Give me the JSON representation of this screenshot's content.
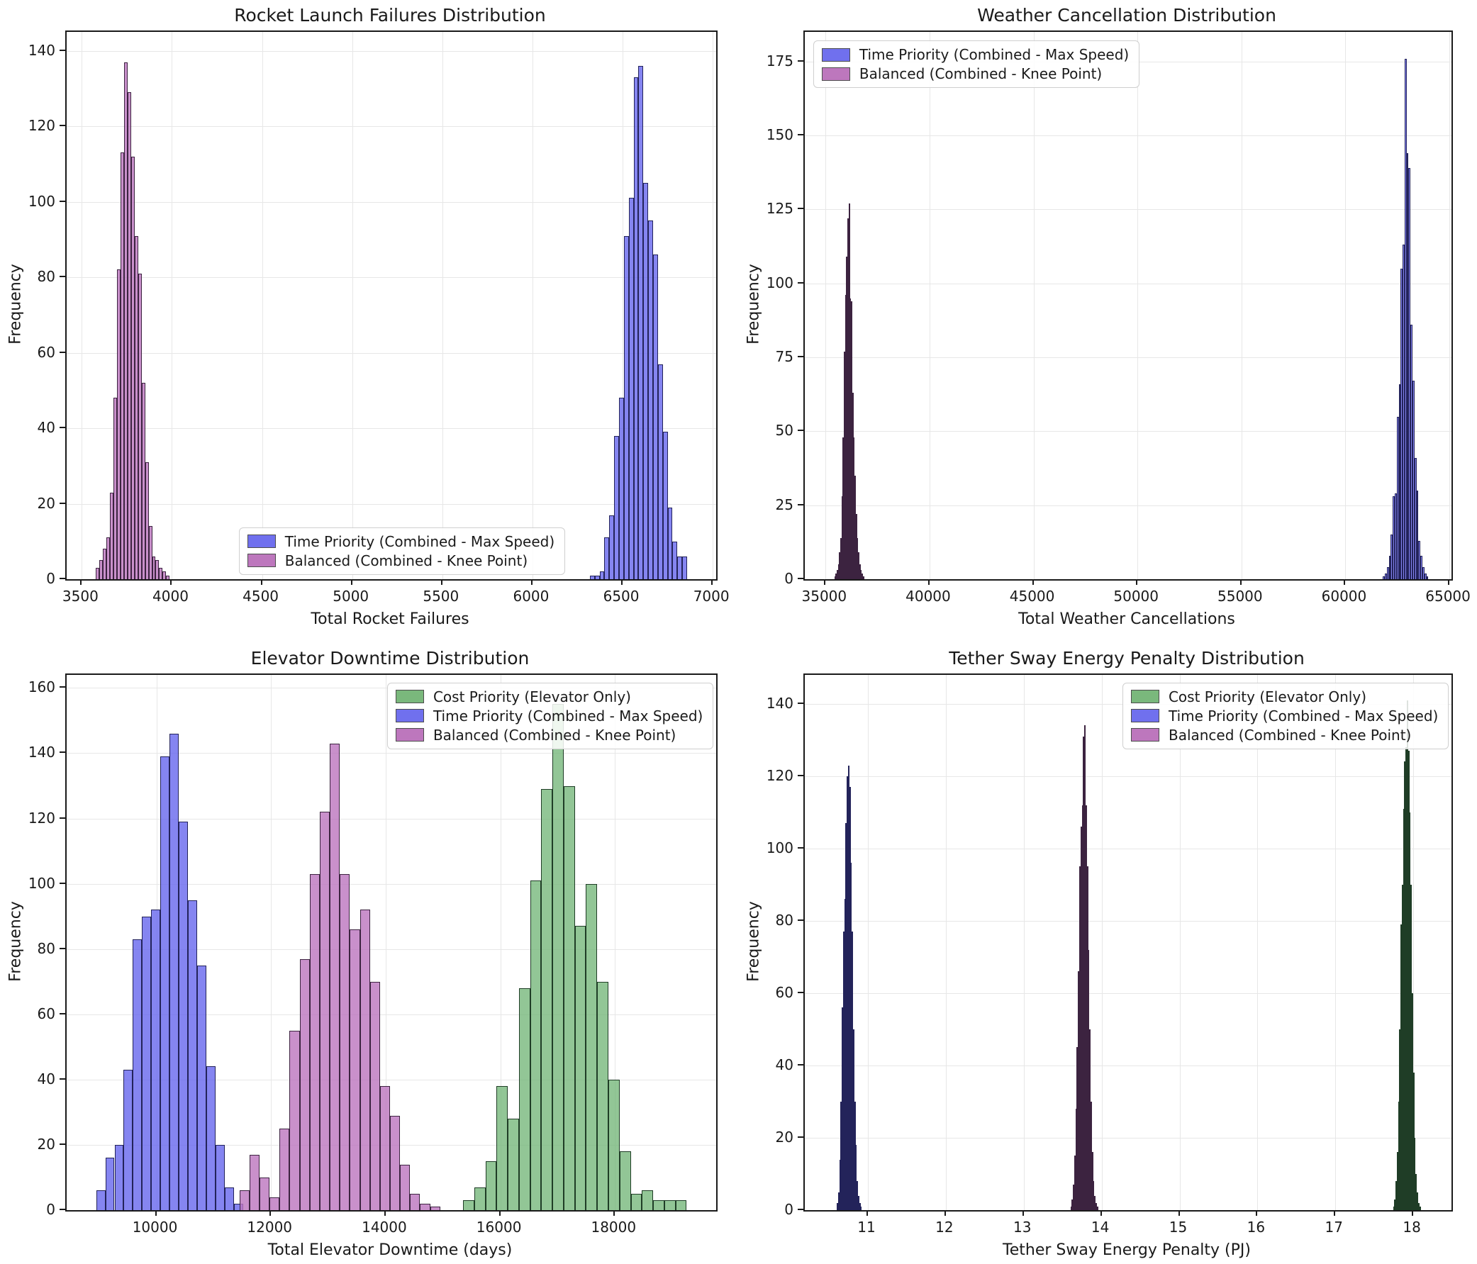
{
  "figure": {
    "background": "#ffffff",
    "grid_color": "#e7e7e7",
    "spine_color": "#1a1a1a",
    "colors": {
      "time_priority_blue": "#7070ee",
      "balanced_purple": "#bd77bd",
      "cost_priority_green": "#7ab87c"
    }
  },
  "chart_data": [
    {
      "type": "histogram",
      "title": "Rocket Launch Failures Distribution",
      "xlabel": "Total Rocket Failures",
      "ylabel": "Frequency",
      "xlim": [
        3416,
        7019
      ],
      "ylim": [
        0,
        145
      ],
      "xticks": [
        3500,
        4000,
        4500,
        5000,
        5500,
        6000,
        6500,
        7000
      ],
      "yticks": [
        0,
        20,
        40,
        60,
        80,
        100,
        120,
        140
      ],
      "grid": true,
      "legend": {
        "position": "bottom-left",
        "items": [
          {
            "label": "Time Priority (Combined - Max Speed)",
            "color": "#7070ee"
          },
          {
            "label": "Balanced (Combined - Knee Point)",
            "color": "#bd77bd"
          }
        ]
      },
      "series": [
        {
          "name": "Time Priority (Combined - Max Speed)",
          "fill": "rgba(102,102,238,0.8)",
          "edge": "#23235a",
          "bin_start": 6318,
          "bin_width": 27,
          "values": [
            1,
            1,
            2,
            11,
            17,
            38,
            48,
            91,
            101,
            133,
            136,
            105,
            95,
            86,
            57,
            39,
            19,
            10,
            6,
            6
          ]
        },
        {
          "name": "Balanced (Combined - Knee Point)",
          "fill": "rgba(188,116,190,0.8)",
          "edge": "#3c2340",
          "bin_start": 3578,
          "bin_width": 19.5,
          "values": [
            3,
            5,
            8,
            11,
            23,
            48,
            82,
            113,
            137,
            129,
            112,
            91,
            81,
            52,
            31,
            14,
            6,
            5,
            3,
            2,
            1
          ]
        }
      ]
    },
    {
      "type": "histogram",
      "title": "Weather Cancellation Distribution",
      "xlabel": "Total Weather Cancellations",
      "ylabel": "Frequency",
      "xlim": [
        34000,
        65100
      ],
      "ylim": [
        0,
        185
      ],
      "xticks": [
        35000,
        40000,
        45000,
        50000,
        55000,
        60000,
        65000
      ],
      "yticks": [
        0,
        25,
        50,
        75,
        100,
        125,
        150,
        175
      ],
      "grid": true,
      "legend": {
        "position": "top-left",
        "items": [
          {
            "label": "Time Priority (Combined - Max Speed)",
            "color": "#7070ee"
          },
          {
            "label": "Balanced (Combined - Knee Point)",
            "color": "#bd77bd"
          }
        ]
      },
      "series": [
        {
          "name": "Time Priority (Combined - Max Speed)",
          "fill": "rgba(102,102,238,0.8)",
          "edge": "#23235a",
          "bin_start": 61800,
          "bin_width": 95,
          "values": [
            1,
            2,
            4,
            8,
            15,
            28,
            29,
            55,
            66,
            105,
            113,
            176,
            144,
            139,
            86,
            67,
            41,
            30,
            13,
            8,
            4,
            2,
            1
          ]
        },
        {
          "name": "Balanced (Combined - Knee Point)",
          "fill": "rgba(188,116,190,0.8)",
          "edge": "#3c2340",
          "bin_start": 35420,
          "bin_width": 57,
          "values": [
            1,
            2,
            3,
            5,
            9,
            14,
            28,
            48,
            77,
            96,
            109,
            122,
            127,
            95,
            94,
            63,
            48,
            35,
            22,
            14,
            9,
            5,
            3,
            2,
            1
          ]
        }
      ]
    },
    {
      "type": "histogram",
      "title": "Elevator Downtime Distribution",
      "xlabel": "Total Elevator Downtime (days)",
      "ylabel": "Frequency",
      "xlim": [
        8435,
        19765
      ],
      "ylim": [
        0,
        164
      ],
      "xticks": [
        10000,
        12000,
        14000,
        16000,
        18000
      ],
      "yticks": [
        0,
        20,
        40,
        60,
        80,
        100,
        120,
        140,
        160
      ],
      "grid": true,
      "legend": {
        "position": "top-right",
        "items": [
          {
            "label": "Cost Priority (Elevator Only)",
            "color": "#7ab87c"
          },
          {
            "label": "Time Priority (Combined - Max Speed)",
            "color": "#7070ee"
          },
          {
            "label": "Balanced (Combined - Knee Point)",
            "color": "#bd77bd"
          }
        ]
      },
      "series": [
        {
          "name": "Time Priority (Combined - Max Speed)",
          "fill": "rgba(102,102,238,0.8)",
          "edge": "#23235a",
          "bin_start": 8950,
          "bin_width": 160,
          "values": [
            6,
            16,
            20,
            43,
            83,
            90,
            92,
            139,
            146,
            119,
            95,
            75,
            44,
            20,
            7,
            2
          ]
        },
        {
          "name": "Balanced (Combined - Knee Point)",
          "fill": "rgba(188,116,190,0.8)",
          "edge": "#3c2340",
          "bin_start": 11450,
          "bin_width": 175,
          "values": [
            6,
            17,
            10,
            4,
            25,
            55,
            77,
            103,
            122,
            143,
            103,
            86,
            92,
            70,
            38,
            29,
            14,
            5,
            2,
            1
          ]
        },
        {
          "name": "Cost Priority (Elevator Only)",
          "fill": "rgba(119,184,124,0.8)",
          "edge": "#1f3d26",
          "bin_start": 15350,
          "bin_width": 195,
          "values": [
            3,
            7,
            15,
            38,
            28,
            68,
            101,
            129,
            155,
            130,
            87,
            100,
            70,
            40,
            18,
            5,
            6,
            3,
            3,
            3
          ]
        }
      ]
    },
    {
      "type": "histogram",
      "title": "Tether Sway Energy Penalty Distribution",
      "xlabel": "Tether Sway Energy Penalty (PJ)",
      "ylabel": "Frequency",
      "xlim": [
        10.19,
        18.49
      ],
      "ylim": [
        0,
        148
      ],
      "xticks": [
        11,
        12,
        13,
        14,
        15,
        16,
        17,
        18
      ],
      "yticks": [
        0,
        20,
        40,
        60,
        80,
        100,
        120,
        140
      ],
      "grid": true,
      "legend": {
        "position": "top-right",
        "items": [
          {
            "label": "Cost Priority (Elevator Only)",
            "color": "#7ab87c"
          },
          {
            "label": "Time Priority (Combined - Max Speed)",
            "color": "#7070ee"
          },
          {
            "label": "Balanced (Combined - Knee Point)",
            "color": "#bd77bd"
          }
        ]
      },
      "series": [
        {
          "name": "Time Priority (Combined - Max Speed)",
          "fill": "rgba(102,102,238,0.8)",
          "edge": "#23235a",
          "bin_start": 10.6,
          "bin_width": 0.016,
          "values": [
            2,
            5,
            14,
            30,
            56,
            77,
            86,
            107,
            120,
            123,
            117,
            96,
            77,
            50,
            30,
            18,
            8,
            4,
            2,
            1
          ]
        },
        {
          "name": "Balanced (Combined - Knee Point)",
          "fill": "rgba(188,116,190,0.8)",
          "edge": "#3c2340",
          "bin_start": 13.6,
          "bin_width": 0.016,
          "values": [
            1,
            3,
            7,
            15,
            28,
            45,
            66,
            95,
            106,
            112,
            131,
            134,
            112,
            95,
            72,
            50,
            30,
            16,
            8,
            4,
            2,
            1
          ]
        },
        {
          "name": "Cost Priority (Elevator Only)",
          "fill": "rgba(119,184,124,0.8)",
          "edge": "#1f3d26",
          "bin_start": 17.74,
          "bin_width": 0.016,
          "values": [
            1,
            3,
            8,
            16,
            30,
            50,
            79,
            90,
            111,
            124,
            128,
            141,
            127,
            110,
            90,
            60,
            38,
            20,
            10,
            5,
            2,
            1
          ]
        }
      ]
    }
  ]
}
